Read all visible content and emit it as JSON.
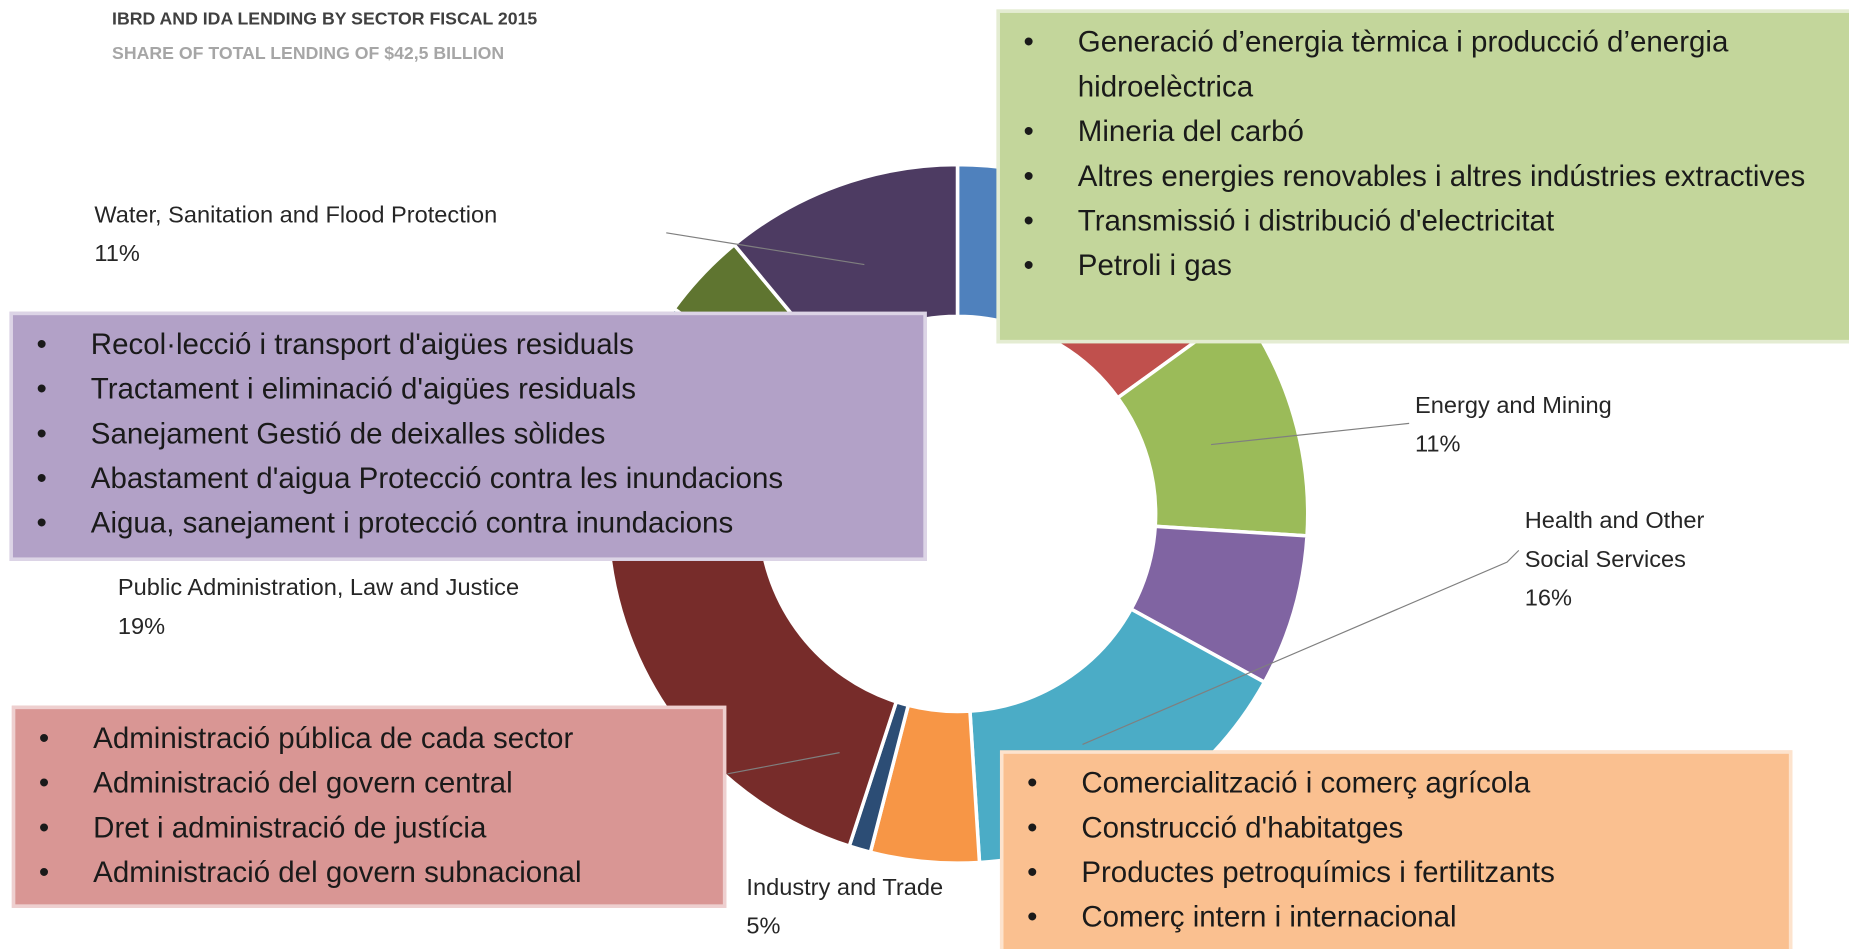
{
  "chart_data": {
    "type": "donut",
    "title": "IBRD AND IDA LENDING BY SECTOR FISCAL 2015",
    "subtitle": "SHARE OF TOTAL LENDING OF $42,5 BILLION",
    "categories": [
      null,
      null,
      "Energy and Mining",
      null,
      "Health and Other Social Services",
      "Industry and Trade",
      null,
      "Public Administration, Law and Justice",
      null,
      null,
      "Water, Sanitation and Flood Protection"
    ],
    "values": [
      7,
      8,
      11,
      7,
      16,
      5,
      1,
      19,
      11,
      4,
      11
    ],
    "value_labels": [
      null,
      null,
      "11%",
      null,
      "16%",
      "5%",
      null,
      "19%",
      null,
      null,
      "11%"
    ],
    "colors": [
      "#4f81bd",
      "#c0504d",
      "#9bbb59",
      "#8064a2",
      "#4bacc6",
      "#f79646",
      "#2c4d75",
      "#772c2a",
      "#276a7c",
      "#5f7530",
      "#4d3b62"
    ]
  },
  "callouts": [
    {
      "items": [
        "Generació d’energia tèrmica i producció d’energia hidroelèctrica",
        "Mineria del carbó",
        "Altres energies renovables i altres indústries extractives",
        "Transmissió i distribució d'electricitat",
        "Petroli i gas"
      ]
    },
    {
      "items": [
        "Recol·lecció i transport d'aigües residuals",
        "Tractament i eliminació d'aigües residuals",
        "Sanejament Gestió de deixalles sòlides",
        "Abastament d'aigua Protecció contra les inundacions",
        "Aigua, sanejament i protecció contra inundacions"
      ]
    },
    {
      "items": [
        "Administració pública de cada sector",
        "Administració del govern central",
        "Dret i administració de justícia",
        "Administració del govern subnacional"
      ]
    },
    {
      "items": [
        "Comercialització i comerç agrícola",
        "Construcció d'habitatges",
        "Productes petroquímics i fertilitzants",
        "Comerç intern i internacional"
      ]
    }
  ]
}
